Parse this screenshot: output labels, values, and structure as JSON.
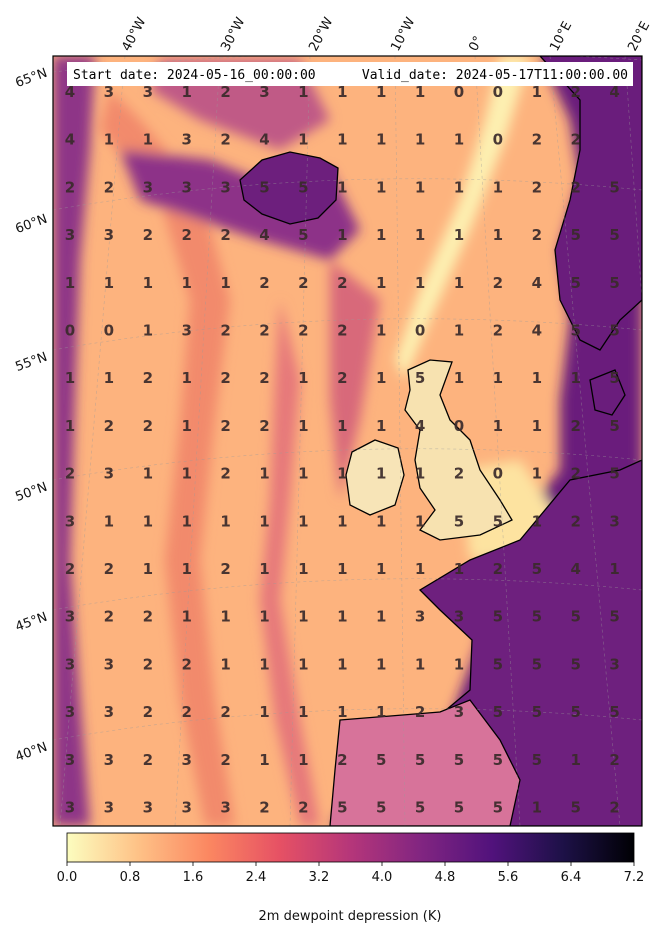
{
  "header": {
    "start_date": "Start date: 2024-05-16_00:00:00",
    "valid_date": "Valid_date: 2024-05-17T11:00:00.00"
  },
  "lon_labels": [
    "40°W",
    "30°W",
    "20°W",
    "10°W",
    "0°",
    "10°E",
    "20°E"
  ],
  "lat_labels": [
    "65°N",
    "60°N",
    "55°N",
    "50°N",
    "45°N",
    "40°N"
  ],
  "colorbar": {
    "label": "2m dewpoint depression (K)",
    "ticks": [
      "0.0",
      "0.8",
      "1.6",
      "2.4",
      "3.2",
      "4.0",
      "4.8",
      "5.6",
      "6.4",
      "7.2"
    ],
    "min": 0,
    "max": 7.2,
    "colormap": "magma_r",
    "colors": [
      "#fcfdbf",
      "#fec287",
      "#fb8761",
      "#e65164",
      "#b5367a",
      "#812581",
      "#51127c",
      "#1d1147",
      "#000004"
    ]
  },
  "grid_values": [
    [
      "4",
      "3",
      "3",
      "1",
      "2",
      "3",
      "1",
      "1",
      "1",
      "1",
      "0",
      "0",
      "1",
      "2",
      "4"
    ],
    [
      "4",
      "1",
      "1",
      "3",
      "2",
      "4",
      "1",
      "1",
      "1",
      "1",
      "1",
      "0",
      "2",
      "2",
      ""
    ],
    [
      "2",
      "2",
      "3",
      "3",
      "3",
      "5",
      "5",
      "1",
      "1",
      "1",
      "1",
      "1",
      "2",
      "2",
      "5"
    ],
    [
      "3",
      "3",
      "2",
      "2",
      "2",
      "4",
      "5",
      "1",
      "1",
      "1",
      "1",
      "1",
      "2",
      "5",
      "5"
    ],
    [
      "1",
      "1",
      "1",
      "1",
      "1",
      "2",
      "2",
      "2",
      "1",
      "1",
      "1",
      "2",
      "4",
      "5",
      "5"
    ],
    [
      "0",
      "0",
      "1",
      "3",
      "2",
      "2",
      "2",
      "2",
      "1",
      "0",
      "1",
      "2",
      "4",
      "5",
      "5"
    ],
    [
      "1",
      "1",
      "2",
      "1",
      "2",
      "2",
      "1",
      "2",
      "1",
      "5",
      "1",
      "1",
      "1",
      "1",
      "5"
    ],
    [
      "1",
      "2",
      "2",
      "1",
      "2",
      "2",
      "1",
      "1",
      "1",
      "4",
      "0",
      "1",
      "1",
      "2",
      "5"
    ],
    [
      "2",
      "3",
      "1",
      "1",
      "2",
      "1",
      "1",
      "1",
      "1",
      "1",
      "2",
      "0",
      "1",
      "2",
      "5"
    ],
    [
      "3",
      "1",
      "1",
      "1",
      "1",
      "1",
      "1",
      "1",
      "1",
      "1",
      "5",
      "5",
      "1",
      "2",
      "3"
    ],
    [
      "2",
      "2",
      "1",
      "1",
      "2",
      "1",
      "1",
      "1",
      "1",
      "1",
      "1",
      "2",
      "5",
      "4",
      "1"
    ],
    [
      "3",
      "2",
      "2",
      "1",
      "1",
      "1",
      "1",
      "1",
      "1",
      "3",
      "3",
      "5",
      "5",
      "5",
      "5"
    ],
    [
      "3",
      "3",
      "2",
      "2",
      "1",
      "1",
      "1",
      "1",
      "1",
      "1",
      "1",
      "5",
      "5",
      "5",
      "3"
    ],
    [
      "3",
      "3",
      "2",
      "2",
      "2",
      "1",
      "1",
      "1",
      "1",
      "2",
      "3",
      "5",
      "5",
      "5",
      "5"
    ],
    [
      "3",
      "3",
      "2",
      "3",
      "2",
      "1",
      "1",
      "2",
      "5",
      "5",
      "5",
      "5",
      "5",
      "1",
      "2"
    ],
    [
      "3",
      "3",
      "3",
      "3",
      "3",
      "2",
      "2",
      "5",
      "5",
      "5",
      "5",
      "5",
      "1",
      "5",
      "2"
    ]
  ]
}
